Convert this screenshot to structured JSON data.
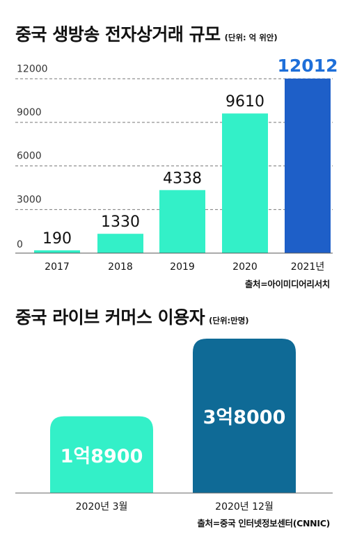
{
  "chart_data": [
    {
      "type": "bar",
      "title": "중국 생방송 전자상거래 규모",
      "unit": "(단위: 억 위안)",
      "categories": [
        "2017",
        "2018",
        "2019",
        "2020",
        "2021년"
      ],
      "values": [
        190,
        1330,
        4338,
        9610,
        12012
      ],
      "value_labels": [
        "190",
        "1330",
        "4338",
        "9610",
        "12012"
      ],
      "y_ticks": [
        "0",
        "3000",
        "6000",
        "9000",
        "12000"
      ],
      "y_tick_values": [
        0,
        3000,
        6000,
        9000,
        12000
      ],
      "ylim": [
        0,
        12012
      ],
      "grid": true,
      "colors": [
        "#33f0c8",
        "#33f0c8",
        "#33f0c8",
        "#33f0c8",
        "#1e5fc8"
      ],
      "highlight_label_color": "#1e6fd9",
      "source": "출처=아이미디어리서치"
    },
    {
      "type": "bar",
      "title": "중국 라이브 커머스 이용자",
      "unit": "(단위:만명)",
      "categories": [
        "2020년 3월",
        "2020년 12월"
      ],
      "values": [
        18900,
        38000
      ],
      "value_labels": [
        "1억8900",
        "3억8000"
      ],
      "colors": [
        "#33f0c8",
        "#0f6a96"
      ],
      "source": "출처=중국 인터넷정보센터(CNNIC)"
    }
  ]
}
